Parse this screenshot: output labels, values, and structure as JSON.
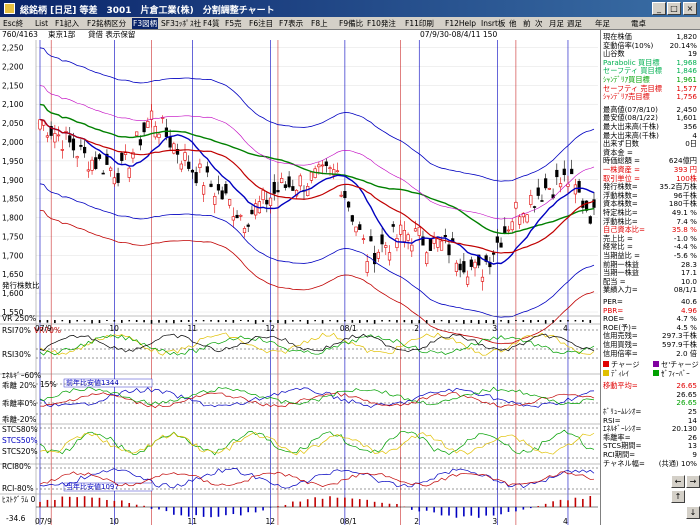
{
  "title": "総銘柄 [日足] 等差　3001　片倉工業(株)　分割調整チャート",
  "menu": [
    "Esc終",
    "List",
    "F1記入",
    "F2銘柄区分",
    "F3図柄",
    "SF3ｺｯﾎﾟｽ社",
    "F4質",
    "F5売",
    "F6注目",
    "F7表示",
    "F8上",
    "F9備比",
    "F10発注",
    "F11印刷",
    "F12Help",
    "Insrt板",
    "他",
    "前",
    "次",
    "月足",
    "週足",
    "年足",
    "電卓"
  ],
  "infobar": {
    "count": "760/4163",
    "market": "東京1部",
    "mode": "貸借 表示保留",
    "period": "07/9/30-08/4/11 150"
  },
  "price_axis": [
    2250,
    2200,
    2150,
    2100,
    2050,
    2000,
    1950,
    1900,
    1850,
    1800,
    1750,
    1700,
    1650,
    1600,
    1550
  ],
  "date_labels": [
    "07/9",
    "10",
    "11",
    "12",
    "08/1",
    "2",
    "3",
    "4"
  ],
  "panels": {
    "volume": "VR 250%",
    "rsi": [
      "RSI70%",
      "VR70%",
      "RSI30%"
    ],
    "kairi": [
      "ｴﾈﾙｷﾞｰ60%",
      "乖離 20%",
      "乖離率0%",
      "乖離-20%",
      "15%"
    ],
    "stcs": [
      "STCS80%",
      "STCS50%",
      "STCS20%"
    ],
    "rci": [
      "RCI80%",
      "RCI-80%"
    ],
    "hist": [
      "ﾋｽﾄｸﾞﾗﾑ 0"
    ],
    "hist_bottom": "-34.6",
    "notes": [
      "前年比安値1344",
      "当年比安値1097"
    ]
  },
  "stats": [
    {
      "label": "現在株価",
      "value": "1,820"
    },
    {
      "label": "変動倍率(10%)",
      "value": "20.14%"
    },
    {
      "label": "山谷数",
      "value": "19"
    },
    {
      "label": "Parabolic 買目標",
      "value": "1,968",
      "color": "#00b050"
    },
    {
      "label": "セーフティ 買目標",
      "value": "1,846",
      "color": "#00b050"
    },
    {
      "label": "ｼｬﾝﾃﾞﾘｱ買目標",
      "value": "1,961",
      "color": "#00a000"
    },
    {
      "label": "セーフティ 売目標",
      "value": "1,577",
      "color": "#e00000"
    },
    {
      "label": "ｼｬﾝﾃﾞﾘｱ売目標",
      "value": "1,756",
      "color": "#e00000"
    }
  ],
  "stats2": [
    {
      "label": "最高値(07/8/10)",
      "value": "2,450"
    },
    {
      "label": "最安値(08/1/22)",
      "value": "1,601"
    },
    {
      "label": "最大出来高(千株)",
      "value": "356"
    },
    {
      "label": "最大出来高(千株)",
      "value": "4"
    },
    {
      "label": "出来ず日数",
      "value": "0日"
    },
    {
      "label": "資本金 =",
      "value": ""
    },
    {
      "label": "時価総額 =",
      "value": "624億円"
    },
    {
      "label": "一株資産 =",
      "value": "393 円",
      "color": "#e00000"
    },
    {
      "label": "取引単位 =",
      "value": "100株",
      "color": "#e00000"
    },
    {
      "label": "発行株数=",
      "value": "35.2百万株"
    },
    {
      "label": "浮動株数=",
      "value": "96千株"
    },
    {
      "label": "資本株数=",
      "value": "180千株"
    },
    {
      "label": "特定株比=",
      "value": "49.1 %"
    },
    {
      "label": "浮動株比=",
      "value": "7.4 %"
    },
    {
      "label": "自己資本比=",
      "value": "35.8 %",
      "color": "#e00000"
    },
    {
      "label": "売上比 =",
      "value": "-1.0 %"
    },
    {
      "label": "経常比 =",
      "value": "-4.4 %"
    },
    {
      "label": "当期益比 =",
      "value": "-5.6 %"
    },
    {
      "label": "前期一株益",
      "value": "28.3"
    },
    {
      "label": "当期一株益",
      "value": "17.1"
    },
    {
      "label": "配当 =",
      "value": "10.0"
    },
    {
      "label": "業績入力=",
      "value": "08/1/1"
    }
  ],
  "stats3": [
    {
      "label": "PER=",
      "value": "40.6"
    },
    {
      "label": "PBR=",
      "value": "4.96",
      "color": "#e00000"
    },
    {
      "label": "ROE=",
      "value": "4.7 %"
    },
    {
      "label": "ROE(予)=",
      "value": "4.5 %"
    },
    {
      "label": "信用売残=",
      "value": "297.3千株"
    },
    {
      "label": "信用買残=",
      "value": "597.9千株"
    },
    {
      "label": "信用倍率=",
      "value": "2.0 倍"
    }
  ],
  "legend": [
    {
      "label": "チャージ",
      "color": "#e00000"
    },
    {
      "label": "セ'チャージ",
      "color": "#8000a0"
    },
    {
      "label": "ﾃﾞｨﾚｲ",
      "color": "#e0c000"
    },
    {
      "label": "ｾﾞﾌｨｰﾊﾞｰ",
      "color": "#00a000"
    }
  ],
  "stats4": [
    {
      "label": "移動平均=",
      "value": "26.65",
      "color": "#e00000"
    },
    {
      "label": "",
      "value": "26.65",
      "color": "#000"
    },
    {
      "label": "",
      "value": "26.65",
      "color": "#00a000"
    },
    {
      "label": "ﾎﾞﾘｭｰﾑﾚｼｵ=",
      "value": "25"
    },
    {
      "label": "RSI=",
      "value": "14"
    },
    {
      "label": "ｴﾈﾙｷﾞｰﾚｼｵ=",
      "value": "20.130"
    },
    {
      "label": "乖離率=",
      "value": "26"
    },
    {
      "label": "STCS期間=",
      "value": "13"
    },
    {
      "label": "RCI期間=",
      "value": "9"
    },
    {
      "label": "チャネル幅=",
      "value": "(共通) 10%"
    }
  ],
  "nav": {
    "left": "←",
    "right": "→",
    "up": "↑",
    "down": "↓"
  },
  "colors": {
    "candle_up": "#e00000",
    "candle_down": "#000000",
    "ma_short": "#0000c0",
    "ma_mid": "#c00000",
    "ma_long": "#008000",
    "band": "#0000c0",
    "band_low": "#c00000"
  }
}
